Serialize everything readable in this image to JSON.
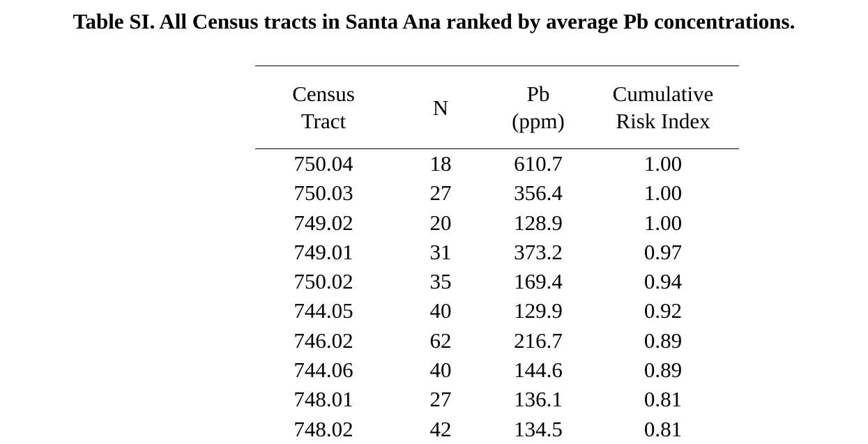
{
  "caption": "Table SI. All Census tracts in Santa Ana ranked by average Pb concentrations.",
  "table": {
    "headers": [
      "Census\nTract",
      "N",
      "Pb\n(ppm)",
      "Cumulative\nRisk Index"
    ],
    "rows": [
      [
        "750.04",
        "18",
        "610.7",
        "1.00"
      ],
      [
        "750.03",
        "27",
        "356.4",
        "1.00"
      ],
      [
        "749.02",
        "20",
        "128.9",
        "1.00"
      ],
      [
        "749.01",
        "31",
        "373.2",
        "0.97"
      ],
      [
        "750.02",
        "35",
        "169.4",
        "0.94"
      ],
      [
        "744.05",
        "40",
        "129.9",
        "0.92"
      ],
      [
        "746.02",
        "62",
        "216.7",
        "0.89"
      ],
      [
        "744.06",
        "40",
        "144.6",
        "0.89"
      ],
      [
        "748.01",
        "27",
        "136.1",
        "0.81"
      ],
      [
        "748.02",
        "42",
        "134.5",
        "0.81"
      ]
    ]
  }
}
